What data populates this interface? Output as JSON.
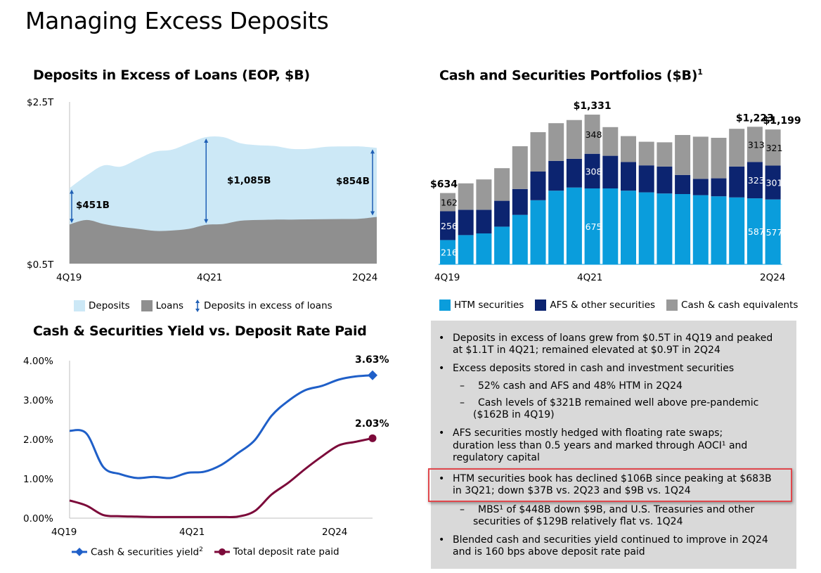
{
  "page": {
    "title": "Managing Excess Deposits"
  },
  "colors": {
    "deposits": "#cce8f6",
    "loans": "#8f8f8f",
    "arrow": "#1f5fb5",
    "htm": "#0a9ddc",
    "afs": "#0c2470",
    "cash": "#999999",
    "yield_line": "#1f5fc8",
    "deposit_rate_line": "#7c0a3a",
    "textbox_bg": "#d9d9d9",
    "highlight_border": "#e0474c"
  },
  "chart_data": [
    {
      "id": "deposits-vs-loans",
      "type": "area",
      "title": "Deposits in Excess of Loans (EOP, $B)",
      "ylabel": "",
      "y_tick_labels": [
        "$2.5T",
        "$0.5T"
      ],
      "ylim": [
        500,
        2500
      ],
      "x_tick_labels": [
        "4Q19",
        "4Q21",
        "2Q24"
      ],
      "x": [
        "4Q19",
        "1Q20",
        "2Q20",
        "3Q20",
        "4Q20",
        "1Q21",
        "2Q21",
        "3Q21",
        "4Q21",
        "1Q22",
        "2Q22",
        "3Q22",
        "4Q22",
        "1Q23",
        "2Q23",
        "3Q23",
        "4Q23",
        "1Q24",
        "2Q24"
      ],
      "series": [
        {
          "name": "Deposits",
          "values": [
            1435,
            1590,
            1715,
            1700,
            1795,
            1885,
            1910,
            1990,
            2065,
            2065,
            1990,
            1965,
            1955,
            1920,
            1920,
            1945,
            1950,
            1950,
            1932
          ]
        },
        {
          "name": "Loans",
          "values": [
            985,
            1040,
            990,
            955,
            930,
            905,
            910,
            930,
            980,
            990,
            1030,
            1040,
            1045,
            1045,
            1048,
            1050,
            1052,
            1055,
            1078
          ]
        }
      ],
      "annotations": [
        {
          "x": "4Q19",
          "label": "$451B"
        },
        {
          "x": "4Q21",
          "label": "$1,085B"
        },
        {
          "x": "2Q24",
          "label": "$854B"
        }
      ],
      "legend": [
        "Deposits",
        "Loans",
        "Deposits in excess of loans"
      ],
      "legend_position": "bottom"
    },
    {
      "id": "cash-securities-portfolios",
      "type": "bar",
      "stacked": true,
      "title": "Cash and Securities Portfolios ($B)",
      "title_superscript": "1",
      "x_tick_labels": [
        "4Q19",
        "4Q21",
        "2Q24"
      ],
      "categories": [
        "4Q19",
        "1Q20",
        "2Q20",
        "3Q20",
        "4Q20",
        "1Q21",
        "2Q21",
        "3Q21",
        "4Q21",
        "1Q22",
        "2Q22",
        "3Q22",
        "4Q22",
        "1Q23",
        "2Q23",
        "3Q23",
        "4Q23",
        "1Q24",
        "2Q24"
      ],
      "ylim": [
        0,
        1400
      ],
      "series": [
        {
          "name": "HTM securities",
          "values": [
            216,
            260,
            275,
            335,
            440,
            570,
            655,
            683,
            675,
            675,
            655,
            640,
            630,
            625,
            615,
            605,
            595,
            587,
            577
          ]
        },
        {
          "name": "AFS & other securities",
          "values": [
            256,
            225,
            210,
            230,
            230,
            255,
            265,
            255,
            308,
            290,
            255,
            240,
            240,
            170,
            145,
            160,
            275,
            323,
            301
          ]
        },
        {
          "name": "Cash & cash equivalents",
          "values": [
            162,
            235,
            270,
            290,
            380,
            350,
            335,
            345,
            348,
            255,
            230,
            210,
            215,
            355,
            375,
            360,
            335,
            313,
            321
          ]
        }
      ],
      "data_labels": [
        {
          "category": "4Q19",
          "htm": "216",
          "afs": "256",
          "cash": "162",
          "total": "$634"
        },
        {
          "category": "4Q21",
          "htm": "675",
          "afs": "308",
          "cash": "348",
          "total": "$1,331"
        },
        {
          "category": "1Q24",
          "htm": "587",
          "afs": "323",
          "cash": "313",
          "total": "$1,223"
        },
        {
          "category": "2Q24",
          "htm": "577",
          "afs": "301",
          "cash": "321",
          "total": "$1,199"
        }
      ],
      "legend": [
        "HTM securities",
        "AFS & other securities",
        "Cash & cash equivalents"
      ],
      "legend_position": "bottom"
    },
    {
      "id": "yield-vs-deposit-rate",
      "type": "line",
      "title": "Cash & Securities Yield vs. Deposit Rate Paid",
      "y_tick_labels": [
        "4.00%",
        "3.00%",
        "2.00%",
        "1.00%",
        "0.00%"
      ],
      "ylim": [
        0,
        4
      ],
      "x_tick_labels": [
        "4Q19",
        "4Q21",
        "2Q24"
      ],
      "x": [
        "4Q19",
        "1Q20",
        "2Q20",
        "3Q20",
        "4Q20",
        "1Q21",
        "2Q21",
        "3Q21",
        "4Q21",
        "1Q22",
        "2Q22",
        "3Q22",
        "4Q22",
        "1Q23",
        "2Q23",
        "3Q23",
        "4Q23",
        "1Q24",
        "2Q24"
      ],
      "series": [
        {
          "name": "Cash & securities yield",
          "superscript": "2",
          "marker": "diamond",
          "values": [
            2.22,
            2.15,
            1.3,
            1.12,
            1.02,
            1.05,
            1.02,
            1.15,
            1.18,
            1.35,
            1.65,
            1.98,
            2.6,
            2.98,
            3.25,
            3.36,
            3.52,
            3.6,
            3.63
          ]
        },
        {
          "name": "Total deposit rate paid",
          "marker": "circle",
          "values": [
            0.45,
            0.32,
            0.08,
            0.05,
            0.04,
            0.03,
            0.03,
            0.03,
            0.03,
            0.03,
            0.04,
            0.18,
            0.6,
            0.9,
            1.25,
            1.57,
            1.85,
            1.94,
            2.03
          ]
        }
      ],
      "end_labels": [
        "3.63%",
        "2.03%"
      ],
      "legend": [
        "Cash & securities yield",
        "Total deposit rate paid"
      ],
      "legend_position": "bottom"
    }
  ],
  "legends": {
    "area": {
      "deposits": "Deposits",
      "loans": "Loans",
      "excess": "Deposits in excess of loans"
    },
    "bar": {
      "htm": "HTM securities",
      "afs": "AFS & other securities",
      "cash": "Cash & cash equivalents"
    },
    "line": {
      "yield": "Cash & securities yield",
      "yield_sup": "2",
      "rate": "Total deposit rate paid"
    }
  },
  "commentary": {
    "lines": [
      {
        "kind": "bullet",
        "text": "Deposits in excess of loans grew from $0.5T in 4Q19 and peaked"
      },
      {
        "kind": "cont1",
        "text": "at $1.1T in 4Q21; remained elevated at $0.9T in 2Q24"
      },
      {
        "kind": "bullet",
        "text": "Excess deposits stored in cash and investment securities"
      },
      {
        "kind": "dash",
        "text": "52% cash and AFS and 48% HTM in 2Q24"
      },
      {
        "kind": "dash",
        "text": "Cash levels of $321B remained well above pre-pandemic"
      },
      {
        "kind": "cont2",
        "text": "($162B in 4Q19)"
      },
      {
        "kind": "bullet",
        "text": "AFS securities mostly hedged with floating rate swaps;"
      },
      {
        "kind": "cont1",
        "text": "duration less than 0.5 years and marked through AOCI¹ and"
      },
      {
        "kind": "cont1",
        "text": "regulatory capital"
      },
      {
        "kind": "bullet",
        "text": "HTM securities book has declined $106B since peaking at $683B",
        "highlighted": true
      },
      {
        "kind": "cont1",
        "text": "in 3Q21; down $37B vs. 2Q23 and $9B vs. 1Q24",
        "highlighted": true
      },
      {
        "kind": "dash",
        "text": "MBS¹ of $448B down $9B, and U.S. Treasuries and other"
      },
      {
        "kind": "cont2",
        "text": "securities of $129B relatively flat vs. 1Q24"
      },
      {
        "kind": "bullet",
        "text": "Blended cash and securities yield continued to improve in 2Q24"
      },
      {
        "kind": "cont1",
        "text": "and is 160 bps above deposit rate paid"
      }
    ],
    "bullet_glyph": "•",
    "dash_glyph": "–"
  }
}
